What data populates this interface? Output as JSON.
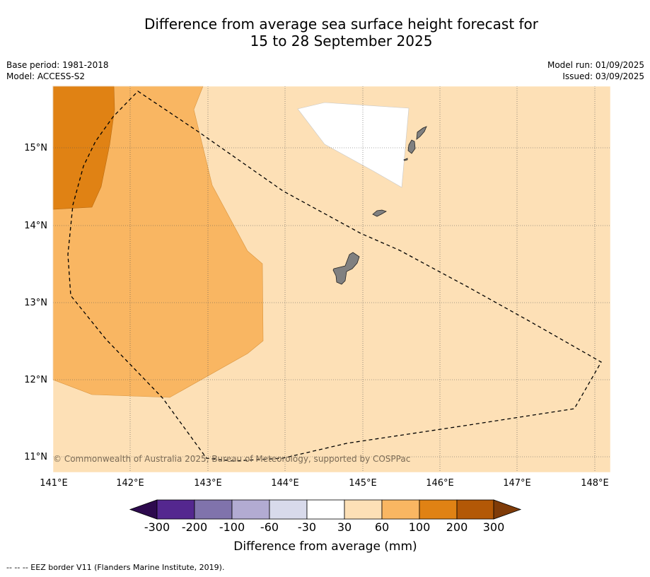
{
  "title": {
    "line1": "Difference from average sea surface height forecast for",
    "line2": "15 to 28 September 2025"
  },
  "meta_left": {
    "base_period": "Base period: 1981-2018",
    "model": "Model: ACCESS-S2"
  },
  "meta_right": {
    "model_run": "Model run: 01/09/2025",
    "issued": "Issued: 03/09/2025"
  },
  "map": {
    "lat_labels": [
      "15°N",
      "14°N",
      "13°N",
      "12°N",
      "11°N"
    ],
    "lon_labels": [
      "141°E",
      "142°E",
      "143°E",
      "144°E",
      "145°E",
      "146°E",
      "147°E",
      "148°E"
    ],
    "copyright": "© Commonwealth of Australia 2025, Bureau of Meteorology, supported by COSPPac"
  },
  "colorbar": {
    "ticks": [
      "-300",
      "-200",
      "-100",
      "-60",
      "-30",
      "30",
      "60",
      "100",
      "200",
      "300"
    ],
    "label": "Difference from average (mm)",
    "colors": [
      "#2d0a4e",
      "#54278f",
      "#8073ac",
      "#b2abd2",
      "#d8daeb",
      "#ffffff",
      "#fde0b6",
      "#f9b662",
      "#e08214",
      "#b35806",
      "#7f3b08"
    ]
  },
  "footnote": "--  --  -- EEZ border V11 (Flanders Marine Institute, 2019).",
  "colors": {
    "band_30_60": "#fde0b6",
    "band_60_100": "#f9b662",
    "band_100_200": "#e08214",
    "land": "#808080"
  }
}
